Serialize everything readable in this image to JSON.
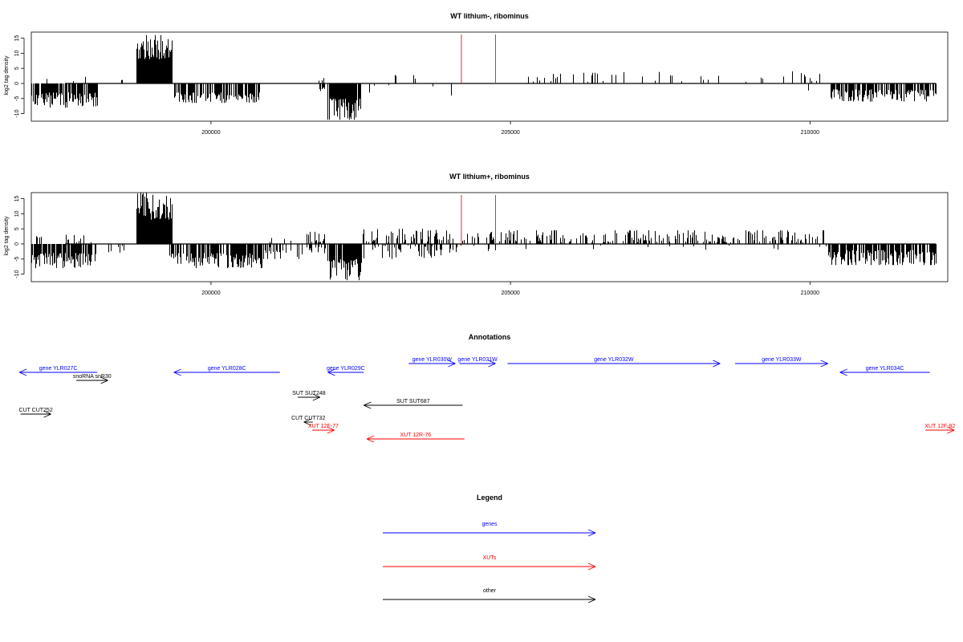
{
  "chart_data": [
    {
      "type": "bar",
      "title": "WT lithium-, ribominus",
      "ylabel": "log2 tag density",
      "xlim": [
        197000,
        212300
      ],
      "ylim": [
        -12.5,
        17
      ],
      "y_ticks": [
        15,
        10,
        5,
        0,
        -5,
        -10
      ],
      "y_tick_labels": [
        "15",
        "10",
        "5",
        "0",
        "-5",
        "-10"
      ],
      "x_ticks": [
        200000,
        205000,
        210000
      ],
      "x_tick_labels": [
        "200000",
        "205000",
        "210000"
      ],
      "marker_lines": {
        "color": "#e8262a",
        "x": [
          204180,
          204750
        ]
      },
      "segments": [
        {
          "x": [
            197000,
            198100
          ],
          "sign": "neg",
          "lo": 3,
          "hi": 8,
          "density": 0.8
        },
        {
          "x": [
            197050,
            197950
          ],
          "sign": "pos",
          "lo": 0.5,
          "hi": 2.2,
          "density": 0.05
        },
        {
          "x": [
            198500,
            198520
          ],
          "sign": "pos",
          "lo": 1,
          "hi": 1.3,
          "density": 1
        },
        {
          "x": [
            198750,
            199350
          ],
          "sign": "pos",
          "lo": 8,
          "hi": 16,
          "density": 1
        },
        {
          "x": [
            199350,
            200800
          ],
          "sign": "neg",
          "lo": 3,
          "hi": 6.5,
          "density": 0.75
        },
        {
          "x": [
            201800,
            201900
          ],
          "sign": "neg",
          "lo": 1,
          "hi": 3,
          "density": 0.4
        },
        {
          "x": [
            201800,
            201900
          ],
          "sign": "pos",
          "lo": 0.5,
          "hi": 3,
          "density": 0.3
        },
        {
          "x": [
            201950,
            202500
          ],
          "sign": "neg",
          "lo": 5,
          "hi": 12,
          "density": 0.9
        },
        {
          "x": [
            202600,
            204100
          ],
          "sign": "neg",
          "lo": 0.5,
          "hi": 4,
          "density": 0.04
        },
        {
          "x": [
            202600,
            204100
          ],
          "sign": "pos",
          "lo": 0.5,
          "hi": 3,
          "density": 0.04
        },
        {
          "x": [
            204800,
            205400
          ],
          "sign": "pos",
          "lo": 0.5,
          "hi": 4.5,
          "density": 0.07
        },
        {
          "x": [
            205400,
            206700
          ],
          "sign": "pos",
          "lo": 0.5,
          "hi": 3.5,
          "density": 0.12
        },
        {
          "x": [
            206700,
            208700
          ],
          "sign": "pos",
          "lo": 0.5,
          "hi": 3.8,
          "density": 0.1
        },
        {
          "x": [
            208800,
            209700
          ],
          "sign": "pos",
          "lo": 0.5,
          "hi": 2.5,
          "density": 0.08
        },
        {
          "x": [
            209700,
            210300
          ],
          "sign": "pos",
          "lo": 0.5,
          "hi": 4,
          "density": 0.12
        },
        {
          "x": [
            209700,
            210300
          ],
          "sign": "neg",
          "lo": 0.5,
          "hi": 2.5,
          "density": 0.03
        },
        {
          "x": [
            210350,
            212100
          ],
          "sign": "neg",
          "lo": 2,
          "hi": 6,
          "density": 0.75
        }
      ]
    },
    {
      "type": "bar",
      "title": "WT lithium+, ribominus",
      "ylabel": "log2 tag density",
      "xlim": [
        197000,
        212300
      ],
      "ylim": [
        -12.5,
        17
      ],
      "y_ticks": [
        15,
        10,
        5,
        0,
        -5,
        -10
      ],
      "y_tick_labels": [
        "15",
        "10",
        "5",
        "0",
        "-5",
        "-10"
      ],
      "x_ticks": [
        200000,
        205000,
        210000
      ],
      "x_tick_labels": [
        "200000",
        "205000",
        "210000"
      ],
      "marker_lines": {
        "color": "#e8262a",
        "x": [
          204180,
          204750
        ]
      },
      "segments": [
        {
          "x": [
            197000,
            198100
          ],
          "sign": "neg",
          "lo": 3,
          "hi": 8,
          "density": 0.8
        },
        {
          "x": [
            197050,
            198100
          ],
          "sign": "pos",
          "lo": 0.5,
          "hi": 3,
          "density": 0.12
        },
        {
          "x": [
            198100,
            198700
          ],
          "sign": "neg",
          "lo": 0.5,
          "hi": 3,
          "density": 0.1
        },
        {
          "x": [
            198100,
            198700
          ],
          "sign": "pos",
          "lo": 0.5,
          "hi": 2,
          "density": 0.05
        },
        {
          "x": [
            198750,
            199350
          ],
          "sign": "pos",
          "lo": 8,
          "hi": 17,
          "density": 1
        },
        {
          "x": [
            199300,
            200850
          ],
          "sign": "neg",
          "lo": 3,
          "hi": 8,
          "density": 0.8
        },
        {
          "x": [
            200850,
            201600
          ],
          "sign": "neg",
          "lo": 1,
          "hi": 5,
          "density": 0.35
        },
        {
          "x": [
            200850,
            201600
          ],
          "sign": "pos",
          "lo": 0.5,
          "hi": 2,
          "density": 0.06
        },
        {
          "x": [
            201600,
            201900
          ],
          "sign": "neg",
          "lo": 1,
          "hi": 4,
          "density": 0.4
        },
        {
          "x": [
            201600,
            201900
          ],
          "sign": "pos",
          "lo": 0.5,
          "hi": 4,
          "density": 0.3
        },
        {
          "x": [
            201950,
            202500
          ],
          "sign": "neg",
          "lo": 5,
          "hi": 12,
          "density": 0.9
        },
        {
          "x": [
            202500,
            204100
          ],
          "sign": "neg",
          "lo": 0.5,
          "hi": 5,
          "density": 0.35
        },
        {
          "x": [
            202500,
            204100
          ],
          "sign": "pos",
          "lo": 0.5,
          "hi": 5,
          "density": 0.35
        },
        {
          "x": [
            204100,
            204900
          ],
          "sign": "pos",
          "lo": 0.5,
          "hi": 4,
          "density": 0.3
        },
        {
          "x": [
            204100,
            204900
          ],
          "sign": "neg",
          "lo": 0.5,
          "hi": 2.5,
          "density": 0.08
        },
        {
          "x": [
            204900,
            210300
          ],
          "sign": "pos",
          "lo": 0.5,
          "hi": 4.5,
          "density": 0.4
        },
        {
          "x": [
            204900,
            210300
          ],
          "sign": "neg",
          "lo": 0.5,
          "hi": 2,
          "density": 0.03
        },
        {
          "x": [
            210300,
            212100
          ],
          "sign": "neg",
          "lo": 2,
          "hi": 7,
          "density": 0.75
        }
      ]
    },
    {
      "type": "diagram",
      "title": "Annotations",
      "xlim": [
        197000,
        212300
      ],
      "features": [
        {
          "label": "gene YLR027C",
          "category": "gene",
          "x": [
            198100,
            196800
          ],
          "lane": 2
        },
        {
          "label": "snoRNA snR30",
          "category": "other",
          "x": [
            197750,
            198280
          ],
          "lane": 3
        },
        {
          "label": "gene YLR028C",
          "category": "gene",
          "x": [
            201150,
            199380
          ],
          "lane": 2
        },
        {
          "label": "gene YLR029C",
          "category": "gene",
          "x": [
            202550,
            201950
          ],
          "lane": 2
        },
        {
          "label": "gene YLR030W",
          "category": "gene",
          "x": [
            203300,
            204080
          ],
          "lane": 1
        },
        {
          "label": "gene YLR031W",
          "category": "gene",
          "x": [
            204150,
            204750
          ],
          "lane": 1
        },
        {
          "label": "gene YLR032W",
          "category": "gene",
          "x": [
            204950,
            208500
          ],
          "lane": 1
        },
        {
          "label": "gene YLR033W",
          "category": "gene",
          "x": [
            208750,
            210300
          ],
          "lane": 1
        },
        {
          "label": "gene YLR034C",
          "category": "gene",
          "x": [
            212000,
            210500
          ],
          "lane": 2
        },
        {
          "label": "SUT SUT248",
          "category": "other",
          "x": [
            201450,
            201820
          ],
          "lane": 4
        },
        {
          "label": "SUT SUT687",
          "category": "other",
          "x": [
            204200,
            202550
          ],
          "lane": 5
        },
        {
          "label": "CUT CUT252",
          "category": "other",
          "x": [
            196820,
            197330
          ],
          "lane": 6
        },
        {
          "label": "CUT CUT732",
          "category": "other",
          "x": [
            201700,
            201550
          ],
          "lane": 7
        },
        {
          "label": "XUT 12F-77",
          "category": "XUT",
          "x": [
            201690,
            202060
          ],
          "lane": 8
        },
        {
          "label": "XUT 12R-76",
          "category": "XUT",
          "x": [
            204230,
            202600
          ],
          "lane": 9
        },
        {
          "label": "XUT 12F-82",
          "category": "XUT",
          "x": [
            211930,
            212410
          ],
          "lane": 8
        }
      ]
    },
    {
      "type": "legend",
      "title": "Legend",
      "entries": [
        {
          "label": "genes",
          "color": "#0000ff"
        },
        {
          "label": "XUTs",
          "color": "#ff0000"
        },
        {
          "label": "other",
          "color": "#000000"
        }
      ]
    }
  ]
}
